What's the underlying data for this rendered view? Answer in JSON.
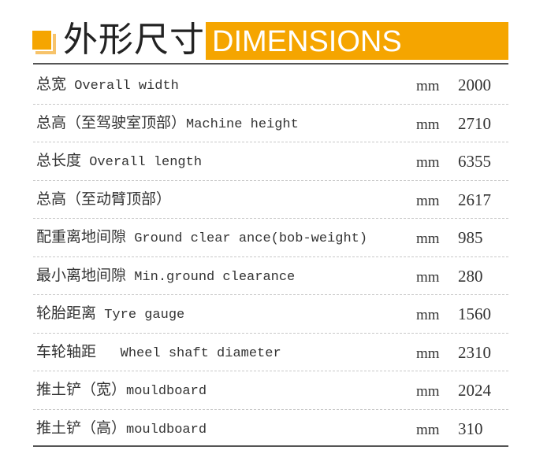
{
  "header": {
    "title_cn": "外形尺寸",
    "title_en": "DIMENSIONS",
    "accent_color": "#f5a500"
  },
  "rows": [
    {
      "cn": "总宽",
      "en": " Overall width",
      "unit": "mm",
      "value": "2000"
    },
    {
      "cn": "总高（至驾驶室顶部）",
      "en": "Machine height",
      "unit": "mm",
      "value": "2710"
    },
    {
      "cn": "总长度",
      "en": " Overall length",
      "unit": "mm",
      "value": "6355"
    },
    {
      "cn": "总高（至动臂顶部）",
      "en": "",
      "unit": "mm",
      "value": "2617"
    },
    {
      "cn": "配重离地间隙",
      "en": " Ground clear ance(bob-weight)",
      "unit": "mm",
      "value": "985"
    },
    {
      "cn": "最小离地间隙",
      "en": " Min.ground clearance",
      "unit": "mm",
      "value": "280"
    },
    {
      "cn": "轮胎距离",
      "en": " Tyre gauge",
      "unit": "mm",
      "value": "1560"
    },
    {
      "cn": "车轮轴距",
      "en": "   Wheel shaft diameter",
      "unit": "mm",
      "value": "2310"
    },
    {
      "cn": "推土铲（宽）",
      "en": "mouldboard",
      "unit": "mm",
      "value": "2024"
    },
    {
      "cn": "推土铲（高）",
      "en": "mouldboard",
      "unit": "mm",
      "value": "310"
    }
  ]
}
